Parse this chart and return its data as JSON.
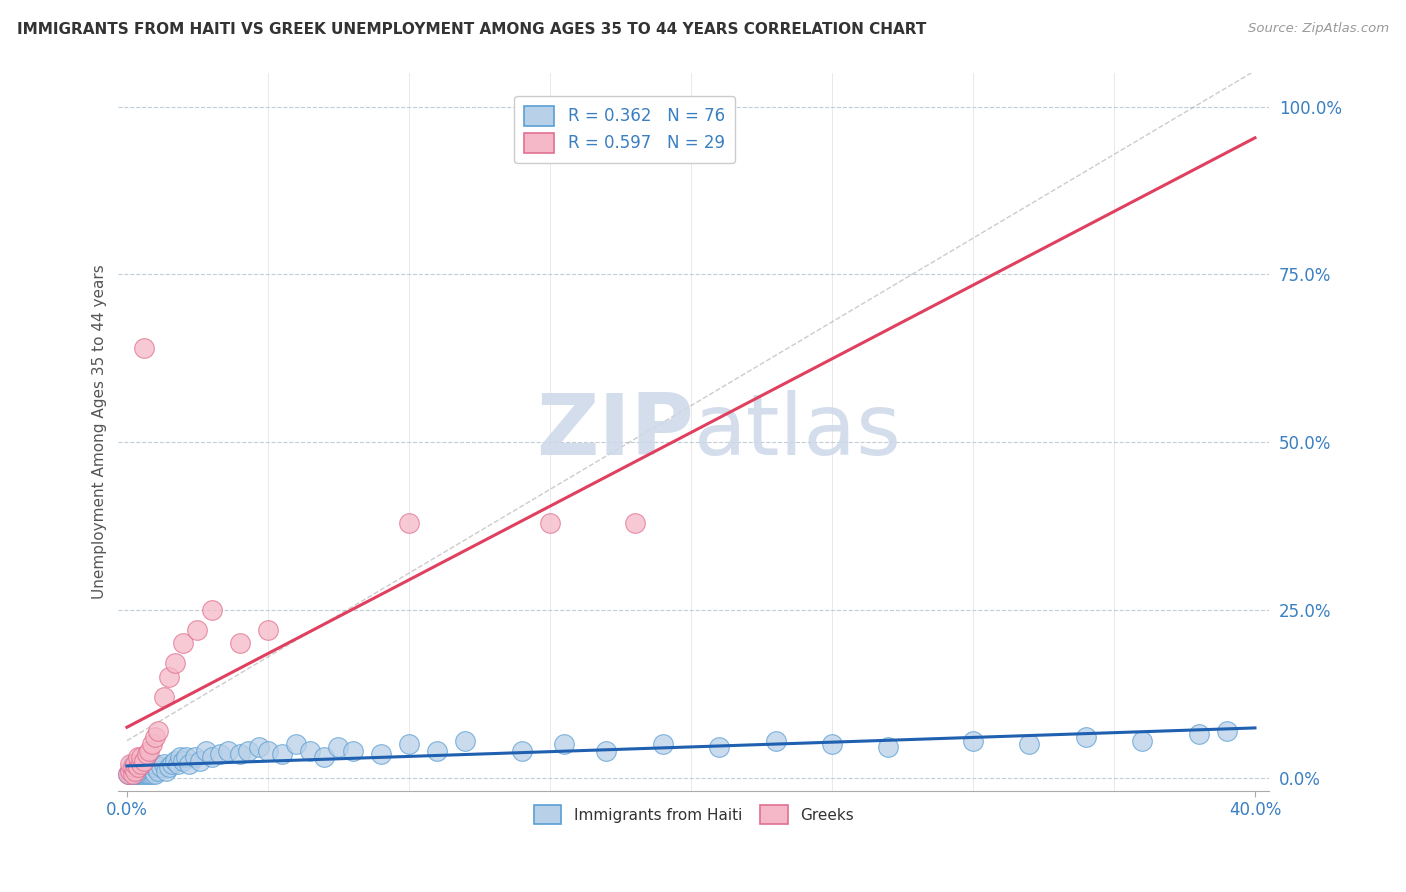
{
  "title": "IMMIGRANTS FROM HAITI VS GREEK UNEMPLOYMENT AMONG AGES 35 TO 44 YEARS CORRELATION CHART",
  "source": "Source: ZipAtlas.com",
  "ylabel": "Unemployment Among Ages 35 to 44 years",
  "yticks": [
    "0.0%",
    "25.0%",
    "50.0%",
    "75.0%",
    "100.0%"
  ],
  "ytick_vals": [
    0.0,
    0.25,
    0.5,
    0.75,
    1.0
  ],
  "xmin": 0.0,
  "xmax": 0.4,
  "ymin": -0.02,
  "ymax": 1.05,
  "haiti_R": 0.362,
  "haiti_N": 76,
  "greek_R": 0.597,
  "greek_N": 29,
  "haiti_color": "#b8d0e8",
  "haiti_edge_color": "#5a9fd4",
  "greek_color": "#f5b8c8",
  "greek_edge_color": "#e07090",
  "haiti_line_color": "#2060b0",
  "greek_line_color": "#e04060",
  "watermark_color": "#ccd8e8",
  "haiti_x": [
    0.0005,
    0.001,
    0.0015,
    0.002,
    0.002,
    0.0025,
    0.003,
    0.003,
    0.003,
    0.004,
    0.004,
    0.004,
    0.005,
    0.005,
    0.005,
    0.006,
    0.006,
    0.006,
    0.007,
    0.007,
    0.008,
    0.008,
    0.009,
    0.009,
    0.01,
    0.01,
    0.01,
    0.011,
    0.012,
    0.013,
    0.014,
    0.015,
    0.016,
    0.017,
    0.018,
    0.019,
    0.02,
    0.021,
    0.022,
    0.024,
    0.026,
    0.028,
    0.03,
    0.033,
    0.036,
    0.04,
    0.043,
    0.047,
    0.05,
    0.055,
    0.06,
    0.065,
    0.07,
    0.075,
    0.08,
    0.09,
    0.1,
    0.11,
    0.12,
    0.14,
    0.155,
    0.17,
    0.19,
    0.21,
    0.23,
    0.25,
    0.27,
    0.3,
    0.32,
    0.34,
    0.36,
    0.38,
    0.39,
    0.003,
    0.002,
    0.001
  ],
  "haiti_y": [
    0.005,
    0.01,
    0.005,
    0.02,
    0.005,
    0.01,
    0.005,
    0.02,
    0.01,
    0.005,
    0.01,
    0.02,
    0.005,
    0.01,
    0.02,
    0.005,
    0.01,
    0.02,
    0.005,
    0.01,
    0.005,
    0.02,
    0.005,
    0.01,
    0.005,
    0.015,
    0.02,
    0.01,
    0.015,
    0.02,
    0.01,
    0.015,
    0.02,
    0.025,
    0.02,
    0.03,
    0.025,
    0.03,
    0.02,
    0.03,
    0.025,
    0.04,
    0.03,
    0.035,
    0.04,
    0.035,
    0.04,
    0.045,
    0.04,
    0.035,
    0.05,
    0.04,
    0.03,
    0.045,
    0.04,
    0.035,
    0.05,
    0.04,
    0.055,
    0.04,
    0.05,
    0.04,
    0.05,
    0.045,
    0.055,
    0.05,
    0.045,
    0.055,
    0.05,
    0.06,
    0.055,
    0.065,
    0.07,
    0.005,
    0.005,
    0.005
  ],
  "greek_x": [
    0.0005,
    0.001,
    0.001,
    0.002,
    0.002,
    0.003,
    0.003,
    0.004,
    0.004,
    0.005,
    0.005,
    0.006,
    0.007,
    0.008,
    0.009,
    0.01,
    0.011,
    0.013,
    0.015,
    0.017,
    0.02,
    0.025,
    0.03,
    0.04,
    0.05,
    0.1,
    0.15,
    0.006,
    0.18
  ],
  "greek_y": [
    0.005,
    0.01,
    0.02,
    0.005,
    0.015,
    0.01,
    0.02,
    0.015,
    0.03,
    0.02,
    0.03,
    0.025,
    0.035,
    0.04,
    0.05,
    0.06,
    0.07,
    0.12,
    0.15,
    0.17,
    0.2,
    0.22,
    0.25,
    0.2,
    0.22,
    0.38,
    0.38,
    0.64,
    0.38
  ]
}
